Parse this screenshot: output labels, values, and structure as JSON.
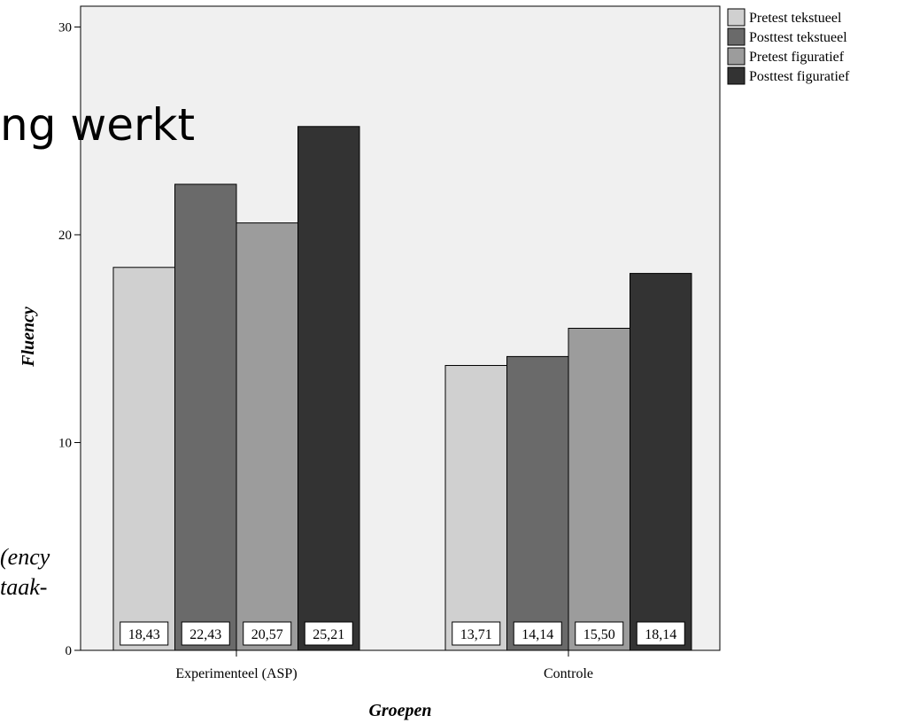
{
  "slide": {
    "title": "ng werkt",
    "side_text_1": "ency)",
    "side_text_2": "-taak"
  },
  "chart_data": {
    "type": "bar",
    "title": "",
    "xlabel": "Groepen",
    "ylabel": "Fluency",
    "ylim": [
      0,
      31
    ],
    "yticks": [
      0,
      10,
      20,
      30
    ],
    "grid": false,
    "legend_position": "top-right",
    "categories": [
      "Experimenteel (ASP)",
      "Controle"
    ],
    "value_labels": [
      [
        "18,43",
        "22,43",
        "20,57",
        "25,21"
      ],
      [
        "13,71",
        "14,14",
        "15,50",
        "18,14"
      ]
    ],
    "series": [
      {
        "name": "Pretest tekstueel",
        "values": [
          18.43,
          13.71
        ],
        "color": "#d0d0d0"
      },
      {
        "name": "Posttest tekstueel",
        "values": [
          22.43,
          14.14
        ],
        "color": "#6a6a6a"
      },
      {
        "name": "Pretest figuratief",
        "values": [
          20.57,
          15.5
        ],
        "color": "#9c9c9c"
      },
      {
        "name": "Posttest figuratief",
        "values": [
          25.21,
          18.14
        ],
        "color": "#333333"
      }
    ],
    "plot_background": "#f0f0f0"
  }
}
